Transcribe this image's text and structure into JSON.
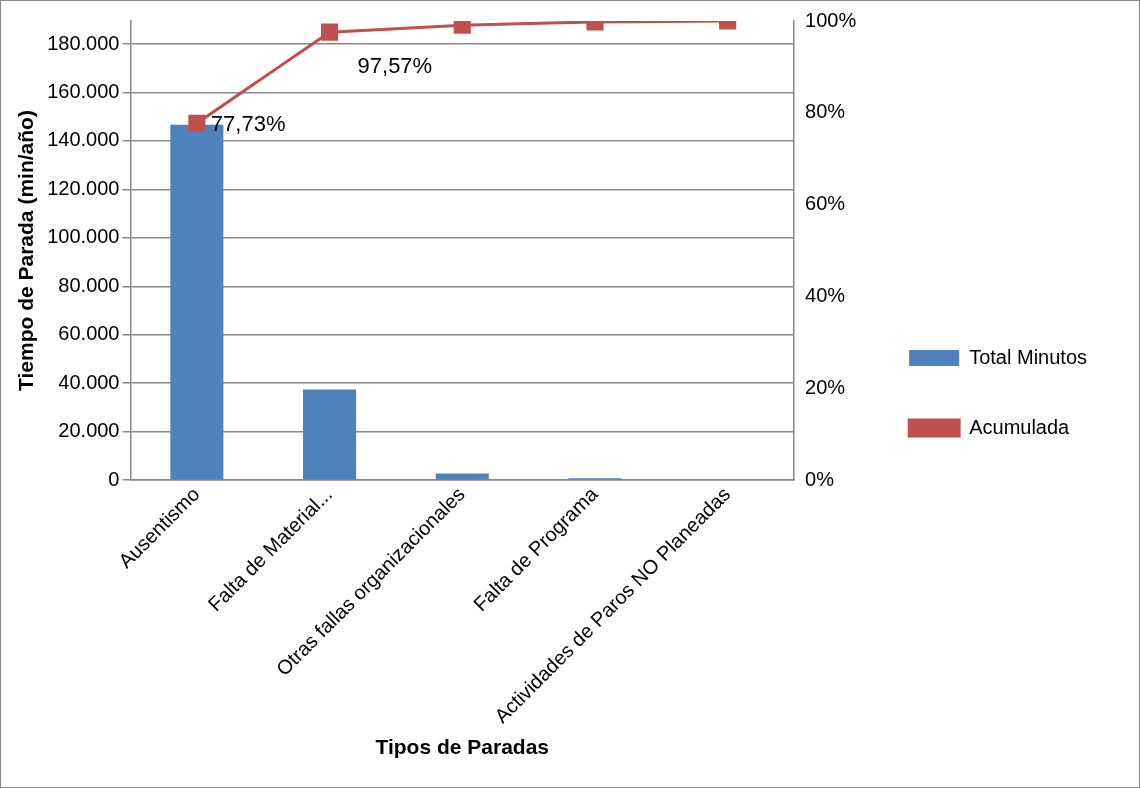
{
  "chart_data": {
    "type": "bar",
    "xlabel": "Tipos de Paradas",
    "ylabel": "Tiempo de Parada (min/año)",
    "categories": [
      "Ausentismo",
      "Falta de Material...",
      "Otras fallas organizacionales",
      "Falta de Programa",
      "Actividades de Paros NO Planeadas"
    ],
    "series": [
      {
        "name": "Total Minutos",
        "color": "#4f81bd",
        "values": [
          146700,
          37400,
          2700,
          800,
          300
        ]
      },
      {
        "name": "Acumulada",
        "type": "line",
        "axis": "y2",
        "color": "#c0504d",
        "marker": "square",
        "values": [
          77.73,
          97.57,
          99.1,
          99.8,
          100
        ],
        "value_labels": [
          "77,73%",
          "97,57%",
          null,
          null,
          null
        ]
      }
    ],
    "ylim": [
      0,
      189500
    ],
    "yticks": [
      {
        "value": 0,
        "label": "0"
      },
      {
        "value": 20000,
        "label": "20.000"
      },
      {
        "value": 40000,
        "label": "40.000"
      },
      {
        "value": 60000,
        "label": "60.000"
      },
      {
        "value": 80000,
        "label": "80.000"
      },
      {
        "value": 100000,
        "label": "100.000"
      },
      {
        "value": 120000,
        "label": "120.000"
      },
      {
        "value": 140000,
        "label": "140.000"
      },
      {
        "value": 160000,
        "label": "160.000"
      },
      {
        "value": 180000,
        "label": "180.000"
      }
    ],
    "y2lim": [
      0,
      100
    ],
    "y2ticks": [
      {
        "value": 0,
        "label": "0%"
      },
      {
        "value": 20,
        "label": "20%"
      },
      {
        "value": 40,
        "label": "40%"
      },
      {
        "value": 60,
        "label": "60%"
      },
      {
        "value": 80,
        "label": "80%"
      },
      {
        "value": 100,
        "label": "100%"
      }
    ],
    "grid": "y",
    "legend": "right"
  }
}
